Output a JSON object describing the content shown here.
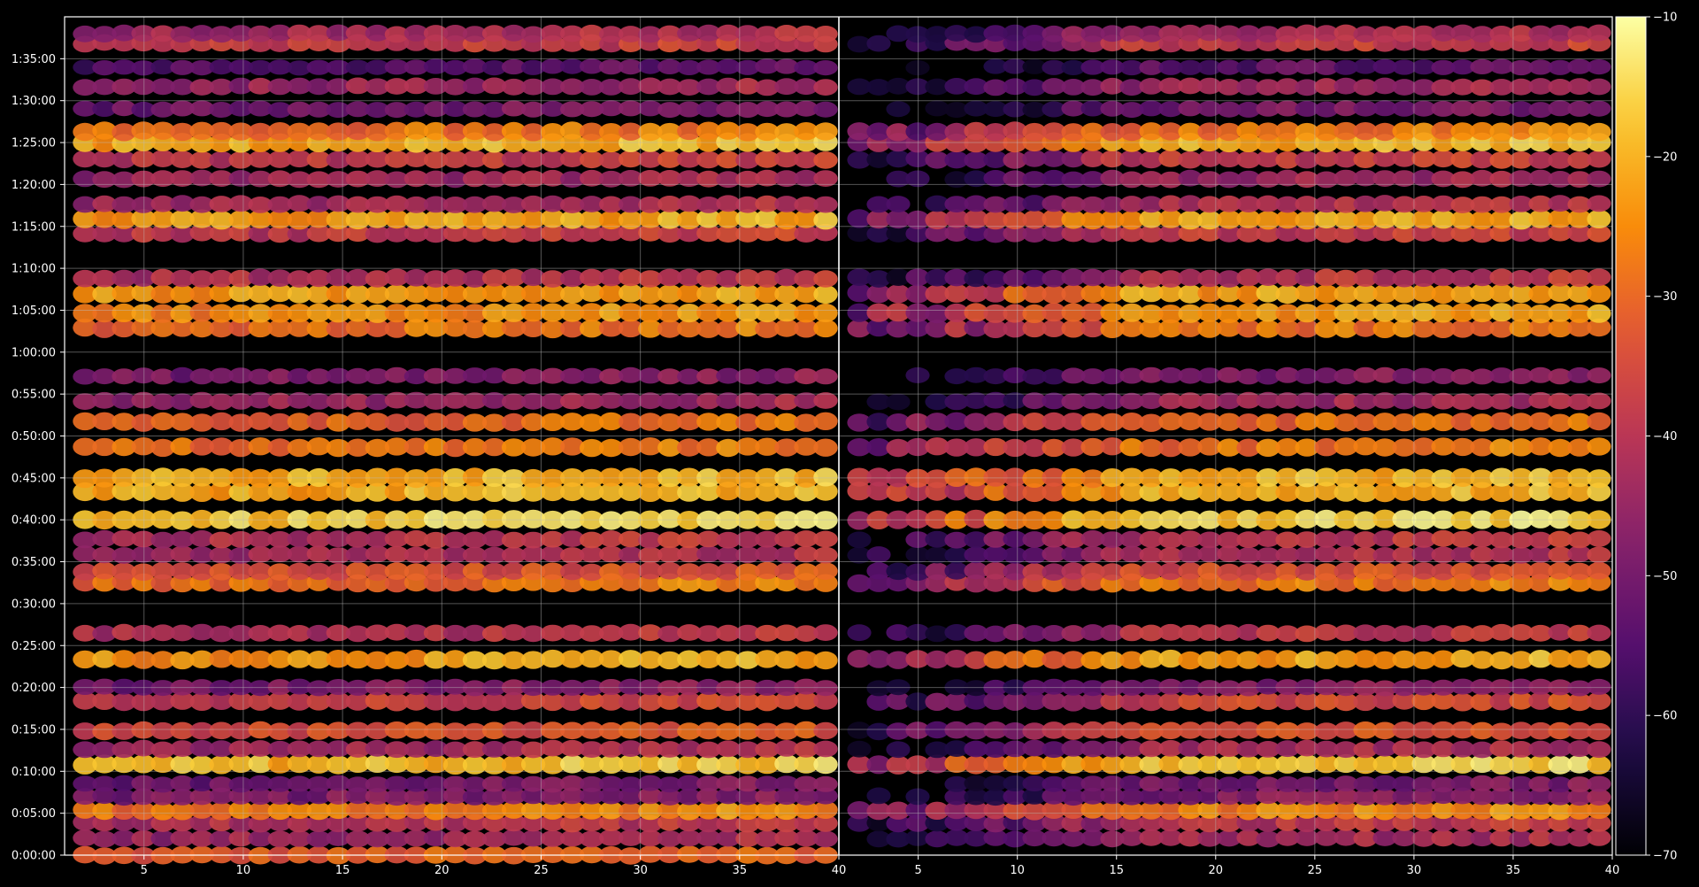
{
  "chart_data": {
    "type": "heatmap",
    "title": "",
    "xlabel": "",
    "ylabel": "",
    "panels": [
      {
        "name": "",
        "xlim": [
          1,
          40
        ],
        "xticks": [
          5,
          10,
          15,
          20,
          25,
          30,
          35,
          40
        ]
      },
      {
        "name": "",
        "xlim": [
          40,
          79
        ],
        "xticks": [
          5,
          10,
          15,
          20,
          25,
          30,
          35,
          40
        ]
      }
    ],
    "ylim": [
      0,
      6000
    ],
    "y_unit": "seconds",
    "yticks": [
      0,
      300,
      600,
      900,
      1200,
      1500,
      1800,
      2100,
      2400,
      2700,
      3000,
      3300,
      3600,
      3900,
      4200,
      4500,
      4800,
      5100,
      5400,
      5700
    ],
    "ytick_labels": [
      "0:00:00",
      "0:05:00",
      "0:10:00",
      "0:15:00",
      "0:20:00",
      "0:25:00",
      "0:30:00",
      "0:35:00",
      "0:40:00",
      "0:45:00",
      "0:50:00",
      "0:55:00",
      "1:00:00",
      "1:05:00",
      "1:10:00",
      "1:15:00",
      "1:20:00",
      "1:25:00",
      "1:30:00",
      "1:35:00"
    ],
    "grid": true,
    "colormap": "inferno",
    "colorbar": {
      "min": -70,
      "max": -10,
      "ticks": [
        -70,
        -60,
        -50,
        -40,
        -30,
        -20,
        -10
      ],
      "tick_labels": [
        "−70",
        "−60",
        "−50",
        "−40",
        "−30",
        "−20",
        "−10"
      ]
    },
    "bands": [
      {
        "t": 0,
        "level": -33,
        "width": 0.7,
        "left_only": true
      },
      {
        "t": 120,
        "level": -45,
        "width": 0.6
      },
      {
        "t": 230,
        "level": -42,
        "width": 0.7
      },
      {
        "t": 320,
        "level": -28,
        "width": 0.8
      },
      {
        "t": 420,
        "level": -50,
        "width": 0.6
      },
      {
        "t": 510,
        "level": -52,
        "width": 0.5
      },
      {
        "t": 650,
        "level": -20,
        "width": 0.9
      },
      {
        "t": 760,
        "level": -45,
        "width": 0.6
      },
      {
        "t": 890,
        "level": -36,
        "width": 0.7
      },
      {
        "t": 1100,
        "level": -38,
        "width": 0.8
      },
      {
        "t": 1200,
        "level": -50,
        "width": 0.5
      },
      {
        "t": 1400,
        "level": -24,
        "width": 0.8
      },
      {
        "t": 1590,
        "level": -42,
        "width": 0.6
      },
      {
        "t": 1950,
        "level": -30,
        "width": 0.8
      },
      {
        "t": 2030,
        "level": -36,
        "width": 0.7
      },
      {
        "t": 2150,
        "level": -44,
        "width": 0.6
      },
      {
        "t": 2260,
        "level": -42,
        "width": 0.6
      },
      {
        "t": 2400,
        "level": -18,
        "width": 0.9
      },
      {
        "t": 2600,
        "level": -22,
        "width": 0.9
      },
      {
        "t": 2700,
        "level": -22,
        "width": 0.9
      },
      {
        "t": 2920,
        "level": -30,
        "width": 0.8
      },
      {
        "t": 3100,
        "level": -32,
        "width": 0.8
      },
      {
        "t": 3250,
        "level": -46,
        "width": 0.6
      },
      {
        "t": 3430,
        "level": -50,
        "width": 0.5
      },
      {
        "t": 3770,
        "level": -30,
        "width": 0.8
      },
      {
        "t": 3880,
        "level": -26,
        "width": 0.9
      },
      {
        "t": 4020,
        "level": -24,
        "width": 0.9
      },
      {
        "t": 4130,
        "level": -42,
        "width": 0.7
      },
      {
        "t": 4450,
        "level": -40,
        "width": 0.7
      },
      {
        "t": 4550,
        "level": -24,
        "width": 0.9
      },
      {
        "t": 4660,
        "level": -44,
        "width": 0.6
      },
      {
        "t": 4840,
        "level": -46,
        "width": 0.6
      },
      {
        "t": 4980,
        "level": -40,
        "width": 0.7
      },
      {
        "t": 5100,
        "level": -22,
        "width": 0.9
      },
      {
        "t": 5180,
        "level": -30,
        "width": 0.8
      },
      {
        "t": 5340,
        "level": -52,
        "width": 0.5
      },
      {
        "t": 5500,
        "level": -46,
        "width": 0.6
      },
      {
        "t": 5640,
        "level": -56,
        "width": 0.4
      },
      {
        "t": 5810,
        "level": -40,
        "width": 0.6
      },
      {
        "t": 5880,
        "level": -44,
        "width": 0.6
      }
    ]
  }
}
